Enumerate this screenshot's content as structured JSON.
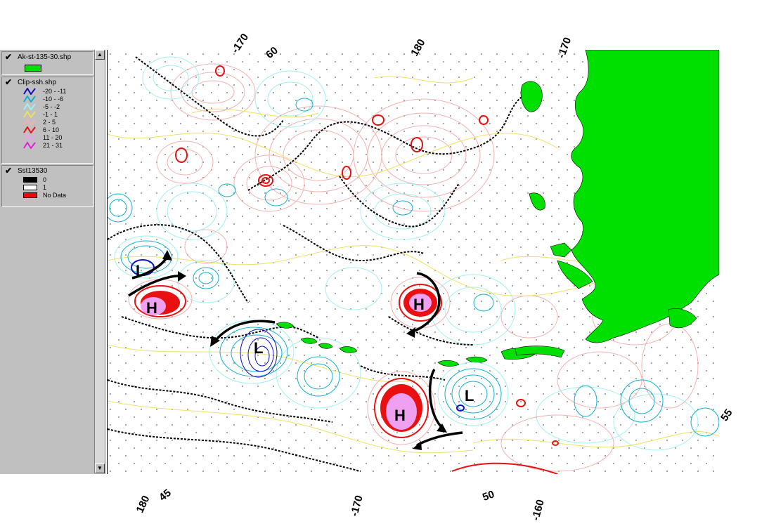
{
  "legend": {
    "layers": [
      {
        "name": "Ak-st-135-30.shp",
        "checked": "✔",
        "fill_color": "#00e000"
      },
      {
        "name": "Clip-ssh.shp",
        "checked": "✔",
        "classes": [
          {
            "label": "-20 - -11",
            "color": "#1010c0"
          },
          {
            "label": "-10 - -6",
            "color": "#10b0d0"
          },
          {
            "label": "-5 - -2",
            "color": "#a0f0f0"
          },
          {
            "label": "-1 - 1",
            "color": "#f0e060"
          },
          {
            "label": "2 - 5",
            "color": "#f4b0b0"
          },
          {
            "label": "6 - 10",
            "color": "#e81010"
          },
          {
            "label": "11 - 20",
            "color": "#f0a0f0"
          },
          {
            "label": "21 - 31",
            "color": "#e020e0"
          }
        ]
      },
      {
        "name": "Sst13530",
        "checked": "✔",
        "classes": [
          {
            "label": "0",
            "color": "#000000"
          },
          {
            "label": "1",
            "color": "#ffffff"
          },
          {
            "label": "No Data",
            "color": "#ff0000"
          }
        ]
      }
    ]
  },
  "map": {
    "land_color": "#00e000",
    "graticule_labels": {
      "top": [
        "-170",
        "60",
        "180",
        "-170"
      ],
      "bottom": [
        "180",
        "45",
        "-170",
        "50",
        "-160"
      ],
      "right": [
        "55"
      ]
    },
    "eddies": [
      {
        "type": "H"
      },
      {
        "type": "H"
      },
      {
        "type": "H"
      },
      {
        "type": "L"
      },
      {
        "type": "L"
      },
      {
        "type": "L"
      }
    ]
  }
}
